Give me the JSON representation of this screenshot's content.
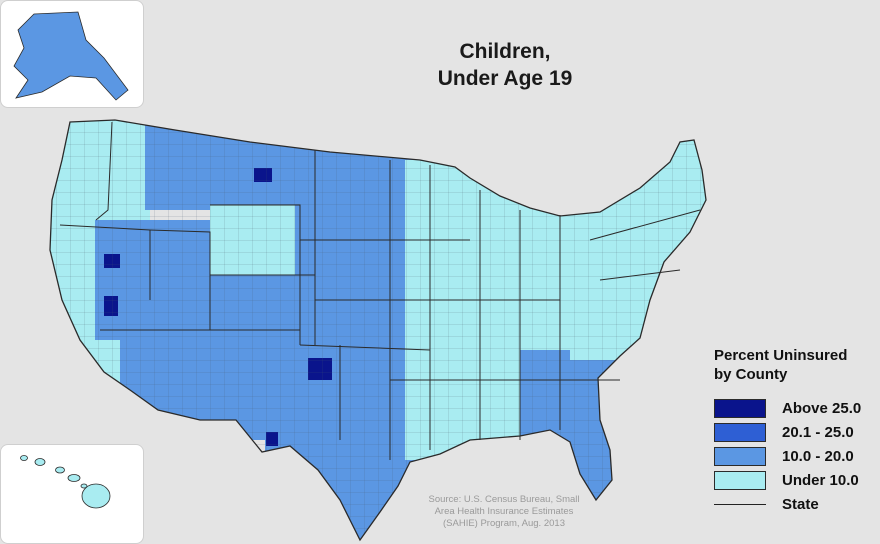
{
  "title": {
    "line1": "Children,",
    "line2": "Under Age 19"
  },
  "legend": {
    "title_line1": "Percent Uninsured",
    "title_line2": "by County",
    "classes": [
      {
        "label": "Above 25.0",
        "color": "#0a148c"
      },
      {
        "label": "20.1 - 25.0",
        "color": "#2e5fd4"
      },
      {
        "label": "10.0 - 20.0",
        "color": "#5b97e3"
      },
      {
        "label": "Under 10.0",
        "color": "#a9ecf1"
      }
    ],
    "state_line_label": "State"
  },
  "source": {
    "line1": "Source: U.S. Census Bureau, Small",
    "line2": "Area Health Insurance Estimates",
    "line3": "(SAHIE) Program, Aug. 2013"
  },
  "colors": {
    "background": "#e4e4e4",
    "state_border": "#2a2a2a",
    "county_border": "#44556a"
  },
  "regions": [
    {
      "name": "west-coast",
      "class": 3
    },
    {
      "name": "nevada-utah",
      "class": 2
    },
    {
      "name": "southwest",
      "class": 2
    },
    {
      "name": "northern-rockies",
      "class": 2
    },
    {
      "name": "wyoming",
      "class": 3
    },
    {
      "name": "colorado",
      "class": 2
    },
    {
      "name": "great-plains",
      "class": 2
    },
    {
      "name": "texas-oklahoma",
      "class": 2
    },
    {
      "name": "midwest-south",
      "class": 3
    },
    {
      "name": "southeast",
      "class": 2
    },
    {
      "name": "florida",
      "class": 2
    },
    {
      "name": "northeast",
      "class": 3
    },
    {
      "name": "great-lakes",
      "class": 3
    },
    {
      "name": "alaska",
      "class": 2
    },
    {
      "name": "hawaii",
      "class": 3
    }
  ],
  "hotspots": [
    {
      "name": "montana-county",
      "class": 0
    },
    {
      "name": "nevada-county-north",
      "class": 0
    },
    {
      "name": "nevada-county-south",
      "class": 0
    },
    {
      "name": "texas-panhandle-county",
      "class": 0
    },
    {
      "name": "texas-west-county",
      "class": 0
    }
  ]
}
